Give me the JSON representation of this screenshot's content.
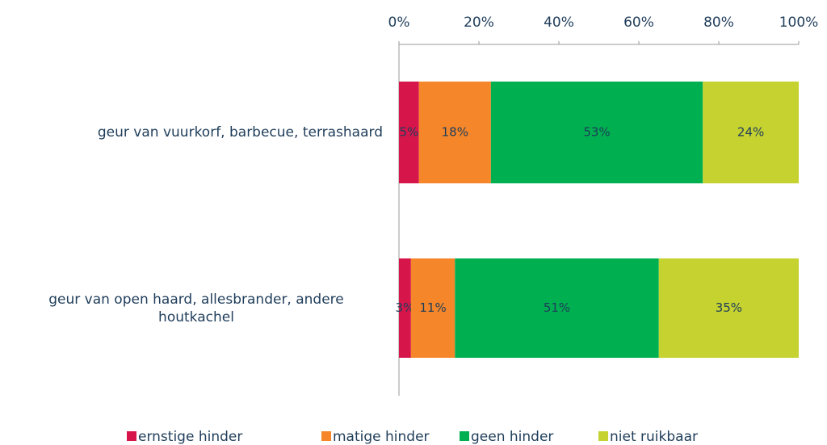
{
  "chart_data": {
    "type": "stacked_bar_horizontal",
    "categories": [
      "geur van vuurkorf, barbecue, terrashaard",
      "geur van open haard, allesbrander, andere houtkachel"
    ],
    "series": [
      {
        "name": "ernstige hinder",
        "color": "#d6164b",
        "values": [
          5,
          3
        ],
        "value_labels": [
          "5%",
          "3%"
        ]
      },
      {
        "name": "matige hinder",
        "color": "#f5862a",
        "values": [
          18,
          11
        ],
        "value_labels": [
          "18%",
          "11%"
        ]
      },
      {
        "name": "geen hinder",
        "color": "#00b050",
        "values": [
          53,
          51
        ],
        "value_labels": [
          "53%",
          "51%"
        ]
      },
      {
        "name": "niet ruikbaar",
        "color": "#c5d230",
        "values": [
          24,
          35
        ],
        "value_labels": [
          "24%",
          "35%"
        ]
      }
    ],
    "xlim": [
      0,
      100
    ],
    "xticks": [
      {
        "value": 0,
        "label": "0%"
      },
      {
        "value": 20,
        "label": "20%"
      },
      {
        "value": 40,
        "label": "40%"
      },
      {
        "value": 60,
        "label": "60%"
      },
      {
        "value": 80,
        "label": "80%"
      },
      {
        "value": 100,
        "label": "100%"
      }
    ],
    "legend": "bottom"
  }
}
